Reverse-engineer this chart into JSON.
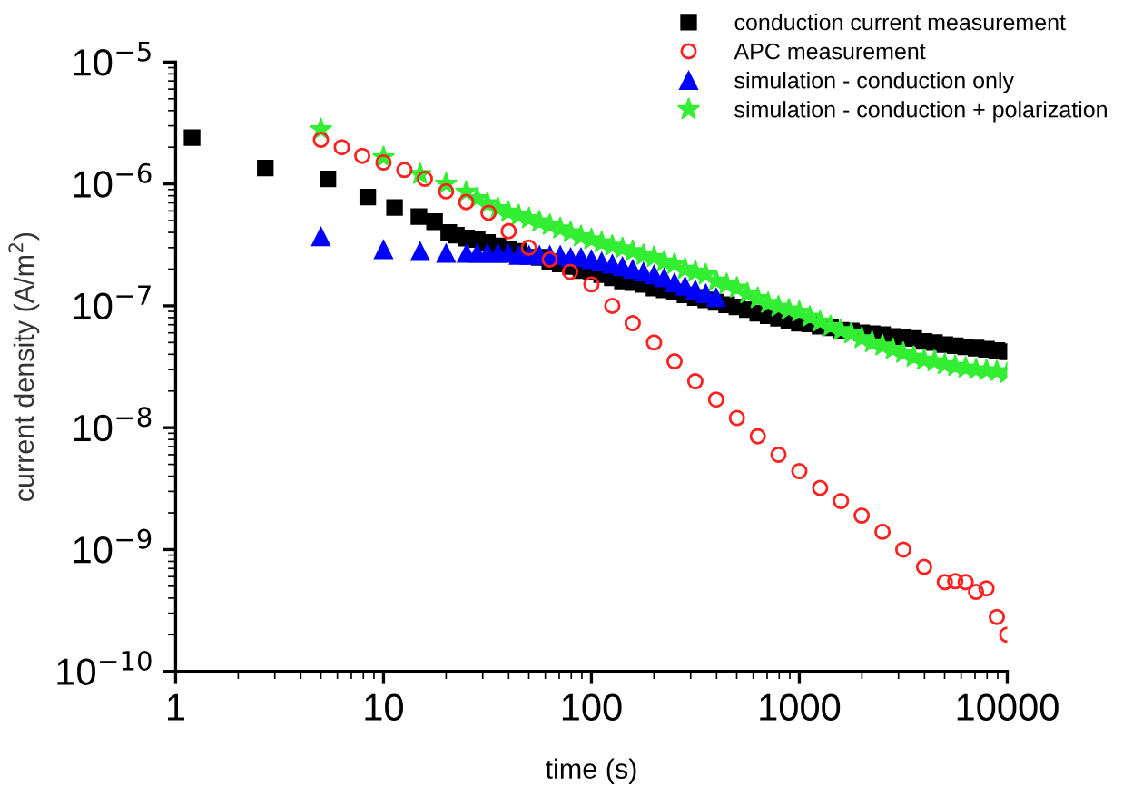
{
  "chart_data": {
    "type": "scatter",
    "xlabel": "time (s)",
    "ylabel": "current density (A/m$^{2}$)",
    "log": "xy",
    "xlim": [
      1,
      10000
    ],
    "ylim": [
      1e-10,
      1e-05
    ],
    "xticks": [
      1,
      10,
      100,
      1000,
      10000
    ],
    "yticks": [
      {
        "value": 1e-10,
        "label": "10$^{−10}$"
      },
      {
        "value": 1e-09,
        "label": "10$^{−9}$"
      },
      {
        "value": 1e-08,
        "label": "10$^{−8}$"
      },
      {
        "value": 1e-07,
        "label": "10$^{−7}$"
      },
      {
        "value": 1e-06,
        "label": "10$^{−6}$"
      },
      {
        "value": 1e-05,
        "label": "10$^{−5}$"
      }
    ],
    "grid": false,
    "legend": "top right",
    "series": [
      {
        "name": "conduction current measurement",
        "color": "#000000",
        "marker": "square",
        "x": [
          1.2,
          2.7,
          5.4,
          8.4,
          11.3,
          14.8,
          17.6,
          20.6,
          22.4,
          25.1,
          28.2,
          31.6,
          35.5,
          39.8,
          44.7,
          50.1,
          56.2,
          63.1,
          70.8,
          79.4,
          89.1,
          100,
          112,
          126,
          141,
          158,
          178,
          200,
          224,
          251,
          282,
          316,
          355,
          398,
          447,
          501,
          562,
          631,
          708,
          794,
          891,
          1000,
          1122,
          1259,
          1413,
          1585,
          1778,
          1995,
          2239,
          2512,
          2818,
          3162,
          3548,
          3981,
          4467,
          5012,
          5623,
          6310,
          7079,
          7943,
          8913,
          10000
        ],
        "values": [
          2.4e-06,
          1.35e-06,
          1.1e-06,
          7.8e-07,
          6.4e-07,
          5.4e-07,
          4.9e-07,
          4e-07,
          3.8e-07,
          3.6e-07,
          3.5e-07,
          3.3e-07,
          3.1e-07,
          2.9e-07,
          2.8e-07,
          null,
          2.5e-07,
          2.3e-07,
          2.2e-07,
          2.1e-07,
          1.95e-07,
          1.9e-07,
          1.8e-07,
          1.7e-07,
          1.6e-07,
          1.55e-07,
          1.5e-07,
          1.4e-07,
          1.35e-07,
          1.3e-07,
          1.23e-07,
          1.17e-07,
          1.12e-07,
          1.07e-07,
          1.02e-07,
          9.8e-08,
          9.3e-08,
          8.7e-08,
          8.3e-08,
          7.9e-08,
          7.6e-08,
          7.2e-08,
          7.1e-08,
          6.8e-08,
          6.6e-08,
          6.3e-08,
          6.2e-08,
          6e-08,
          5.9e-08,
          5.8e-08,
          5.6e-08,
          5.5e-08,
          5.4e-08,
          5.1e-08,
          5e-08,
          4.8e-08,
          4.7e-08,
          4.6e-08,
          4.5e-08,
          4.4e-08,
          4.3e-08,
          4.2e-08
        ]
      },
      {
        "name": "APC measurement",
        "color": "#ff2020",
        "marker": "circle",
        "x": [
          5.0,
          6.3,
          7.9,
          10,
          12.6,
          15.8,
          20,
          25,
          32,
          40,
          50,
          63,
          79,
          100,
          126,
          158,
          200,
          251,
          316,
          398,
          501,
          631,
          794,
          1000,
          1259,
          1585,
          1995,
          2512,
          3162,
          3981,
          5012,
          5623,
          6310,
          7079,
          7943,
          8913,
          10000
        ],
        "values": [
          2.3e-06,
          2e-06,
          1.7e-06,
          1.5e-06,
          1.3e-06,
          1.1e-06,
          8.7e-07,
          7.1e-07,
          5.8e-07,
          4.1e-07,
          3e-07,
          2.4e-07,
          1.9e-07,
          1.5e-07,
          1e-07,
          7.2e-08,
          5e-08,
          3.5e-08,
          2.4e-08,
          1.7e-08,
          1.2e-08,
          8.5e-09,
          6e-09,
          4.4e-09,
          3.2e-09,
          2.5e-09,
          1.9e-09,
          1.4e-09,
          1e-09,
          7.2e-10,
          5.4e-10,
          5.5e-10,
          5.4e-10,
          4.5e-10,
          4.8e-10,
          2.8e-10,
          2e-10
        ]
      },
      {
        "name": "simulation - conduction only",
        "color": "#0000ff",
        "marker": "triangle",
        "x": [
          5,
          10,
          15,
          20,
          25.1,
          28.2,
          31.6,
          35.5,
          39.8,
          44.7,
          50.1,
          56.2,
          63.1,
          70.8,
          79.4,
          89.1,
          100,
          112,
          126,
          141,
          158,
          178,
          200,
          224,
          251,
          282,
          316,
          355,
          398
        ],
        "values": [
          3.7e-07,
          2.9e-07,
          2.8e-07,
          2.7e-07,
          2.7e-07,
          2.7e-07,
          2.7e-07,
          2.7e-07,
          2.7e-07,
          2.6e-07,
          2.6e-07,
          2.6e-07,
          2.6e-07,
          2.6e-07,
          2.5e-07,
          2.5e-07,
          2.4e-07,
          2.3e-07,
          2.2e-07,
          2.1e-07,
          2e-07,
          1.9e-07,
          1.8e-07,
          1.7e-07,
          1.55e-07,
          1.45e-07,
          1.35e-07,
          1.26e-07,
          1.17e-07
        ]
      },
      {
        "name": "simulation - conduction + polarization",
        "color": "#33ee33",
        "marker": "star",
        "x": [
          5,
          10,
          15,
          20,
          25,
          28.2,
          31.6,
          35.5,
          39.8,
          44.7,
          50.1,
          56.2,
          63.1,
          70.8,
          79.4,
          89.1,
          100,
          112,
          126,
          141,
          158,
          178,
          200,
          224,
          251,
          282,
          316,
          355,
          398,
          447,
          501,
          562,
          631,
          708,
          794,
          891,
          1000,
          1122,
          1259,
          1413,
          1585,
          1778,
          1995,
          2239,
          2512,
          2818,
          3162,
          3548,
          3981,
          4467,
          5012,
          5623,
          6310,
          7079,
          7943,
          8913,
          10000
        ],
        "values": [
          2.8e-06,
          1.65e-06,
          1.2e-06,
          1e-06,
          8.6e-07,
          7.6e-07,
          6.9e-07,
          6.3e-07,
          5.9e-07,
          5.5e-07,
          5.2e-07,
          4.9e-07,
          4.6e-07,
          4.3e-07,
          4e-07,
          3.7e-07,
          3.5e-07,
          3.3e-07,
          3.1e-07,
          2.95e-07,
          2.8e-07,
          2.6e-07,
          2.5e-07,
          2.3e-07,
          2.2e-07,
          2e-07,
          1.9e-07,
          1.8e-07,
          1.6e-07,
          1.5e-07,
          1.4e-07,
          1.26e-07,
          1.15e-07,
          1.05e-07,
          9.8e-08,
          9.3e-08,
          8.9e-08,
          8.1e-08,
          7.4e-08,
          6.8e-08,
          6.3e-08,
          5.9e-08,
          5.4e-08,
          5e-08,
          4.7e-08,
          4.4e-08,
          4.1e-08,
          3.8e-08,
          3.6e-08,
          3.5e-08,
          3.3e-08,
          3.2e-08,
          3.1e-08,
          3e-08,
          2.95e-08,
          2.9e-08,
          2.8e-08
        ]
      }
    ]
  }
}
